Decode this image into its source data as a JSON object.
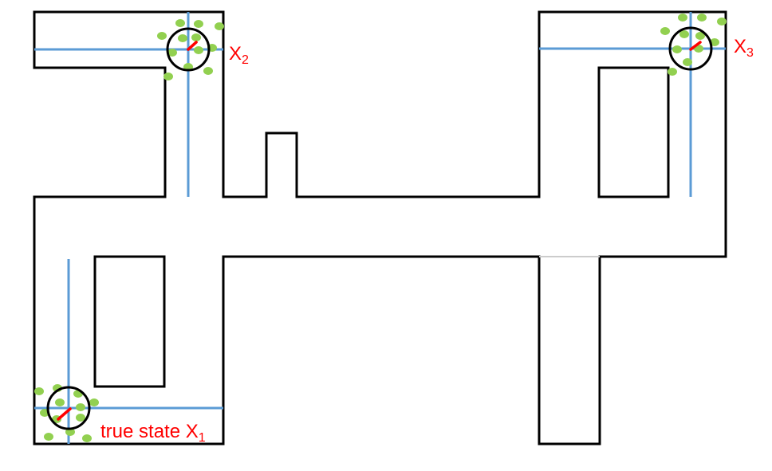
{
  "colors": {
    "wall": "#000000",
    "path": "#5b9bd5",
    "particle": "#92d050",
    "heading": "#ff0000",
    "label": "#ff0000",
    "background": "#ffffff"
  },
  "hypotheses": [
    {
      "id": "x1",
      "label_prefix": "true state ",
      "label_main": "X",
      "label_sub": "1"
    },
    {
      "id": "x2",
      "label_prefix": "",
      "label_main": "X",
      "label_sub": "2"
    },
    {
      "id": "x3",
      "label_prefix": "",
      "label_main": "X",
      "label_sub": "3"
    }
  ]
}
